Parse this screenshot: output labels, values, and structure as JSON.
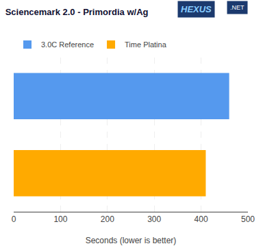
{
  "chart_data": {
    "type": "bar",
    "title": "Sciencemark 2.0 - Primordia w/Ag",
    "orientation": "horizontal",
    "categories": [
      "3.0C Reference",
      "Time Platina"
    ],
    "series": [
      {
        "name": "3.0C Reference",
        "color": "#5599ee",
        "values": [
          460,
          null
        ]
      },
      {
        "name": "Time Platina",
        "color": "#ffaa00",
        "values": [
          null,
          410
        ]
      }
    ],
    "xlabel": "Seconds (lower is better)",
    "xlim": [
      0,
      500
    ],
    "xticks": [
      0,
      100,
      200,
      300,
      400,
      500
    ],
    "grid": true,
    "legend": "top",
    "tick_labels": "x",
    "annotations": [
      {
        "text": "HEXUS"
      },
      {
        "text": ".NET"
      }
    ]
  }
}
